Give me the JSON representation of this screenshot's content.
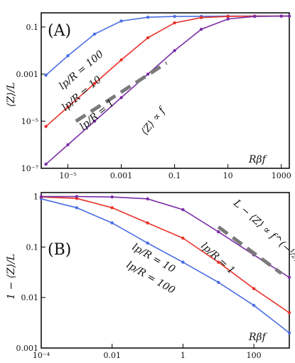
{
  "chart_data": [
    {
      "type": "line",
      "panel_label": "(A)",
      "xscale": "log",
      "yscale": "log",
      "xlim": [
        1e-06,
        2000
      ],
      "ylim": [
        1e-07,
        0.4
      ],
      "xticks": [
        1e-05,
        0.001,
        0.1,
        10,
        1000
      ],
      "xtick_labels": [
        "10⁻⁵",
        "0.001",
        "0.1",
        "10",
        "1000"
      ],
      "yticks": [
        1e-07,
        1e-05,
        0.001,
        0.1
      ],
      "ytick_labels": [
        "10⁻⁷",
        "10⁻⁵",
        "0.001",
        "0.1"
      ],
      "xlabel": "Rβf",
      "ylabel": "⟨Z⟩/L",
      "series": [
        {
          "name": "l_p/R = 100",
          "label": "lp/R = 100",
          "color": "#4a6fe3",
          "x": [
            1.5e-06,
            1e-05,
            0.0001,
            0.001,
            0.01,
            0.1,
            1,
            10,
            100,
            1000,
            2000
          ],
          "y": [
            0.0009,
            0.006,
            0.05,
            0.18,
            0.26,
            0.28,
            0.285,
            0.29,
            0.29,
            0.29,
            0.29
          ]
        },
        {
          "name": "l_p/R = 10",
          "label": "lp/R = 10",
          "color": "#e8322a",
          "x": [
            1.5e-06,
            1e-05,
            0.0001,
            0.001,
            0.01,
            0.1,
            1,
            10,
            100,
            1000,
            2000
          ],
          "y": [
            6e-06,
            4e-05,
            0.0004,
            0.004,
            0.035,
            0.15,
            0.25,
            0.28,
            0.29,
            0.29,
            0.29
          ]
        },
        {
          "name": "l_p/R = 1",
          "label": "lp/R = 1",
          "color": "#7b2fa6",
          "x": [
            1.5e-06,
            1e-05,
            0.0001,
            0.001,
            0.01,
            0.1,
            1,
            10,
            100,
            1000,
            2000
          ],
          "y": [
            1.5e-07,
            1e-06,
            1e-05,
            0.0001,
            0.001,
            0.01,
            0.08,
            0.22,
            0.28,
            0.29,
            0.29
          ]
        }
      ],
      "annotation": {
        "text": "⟨Z⟩ ∝ f",
        "x0": 2e-05,
        "y0": 1e-05,
        "x1": 0.05,
        "y1": 0.003
      }
    },
    {
      "type": "line",
      "panel_label": "(B)",
      "xscale": "log",
      "yscale": "log",
      "xlim": [
        0.0001,
        1000
      ],
      "ylim": [
        0.001,
        1.2
      ],
      "xticks": [
        0.0001,
        0.01,
        1,
        100
      ],
      "xtick_labels": [
        "10⁻⁴",
        "0.01",
        "1",
        "100"
      ],
      "yticks": [
        0.001,
        0.01,
        0.1,
        1
      ],
      "ytick_labels": [
        "0.001",
        "0.01",
        "0.1",
        "1"
      ],
      "xlabel": "Rβf",
      "ylabel": "1 − ⟨Z⟩/L",
      "series": [
        {
          "name": "l_p/R = 100",
          "label": "lp/R = 100",
          "color": "#4a6fe3",
          "x": [
            0.0001,
            0.001,
            0.01,
            0.1,
            1,
            10,
            100,
            1000
          ],
          "y": [
            0.9,
            0.6,
            0.3,
            0.12,
            0.05,
            0.02,
            0.007,
            0.002
          ]
        },
        {
          "name": "l_p/R = 10",
          "label": "lp/R = 10",
          "color": "#e8322a",
          "x": [
            0.0001,
            0.001,
            0.01,
            0.1,
            1,
            10,
            100,
            1000
          ],
          "y": [
            0.98,
            0.92,
            0.6,
            0.3,
            0.15,
            0.05,
            0.015,
            0.005
          ]
        },
        {
          "name": "l_p/R = 1",
          "label": "lp/R = 1",
          "color": "#7b2fa6",
          "x": [
            0.0001,
            0.001,
            0.01,
            0.1,
            1,
            10,
            100,
            1000
          ],
          "y": [
            1.0,
            1.0,
            0.98,
            0.9,
            0.55,
            0.2,
            0.07,
            0.025
          ]
        }
      ],
      "annotation": {
        "text": "L − ⟨Z⟩ ∝ f^(−½)",
        "x0": 10,
        "y0": 0.25,
        "x1": 600,
        "y1": 0.03
      }
    }
  ]
}
